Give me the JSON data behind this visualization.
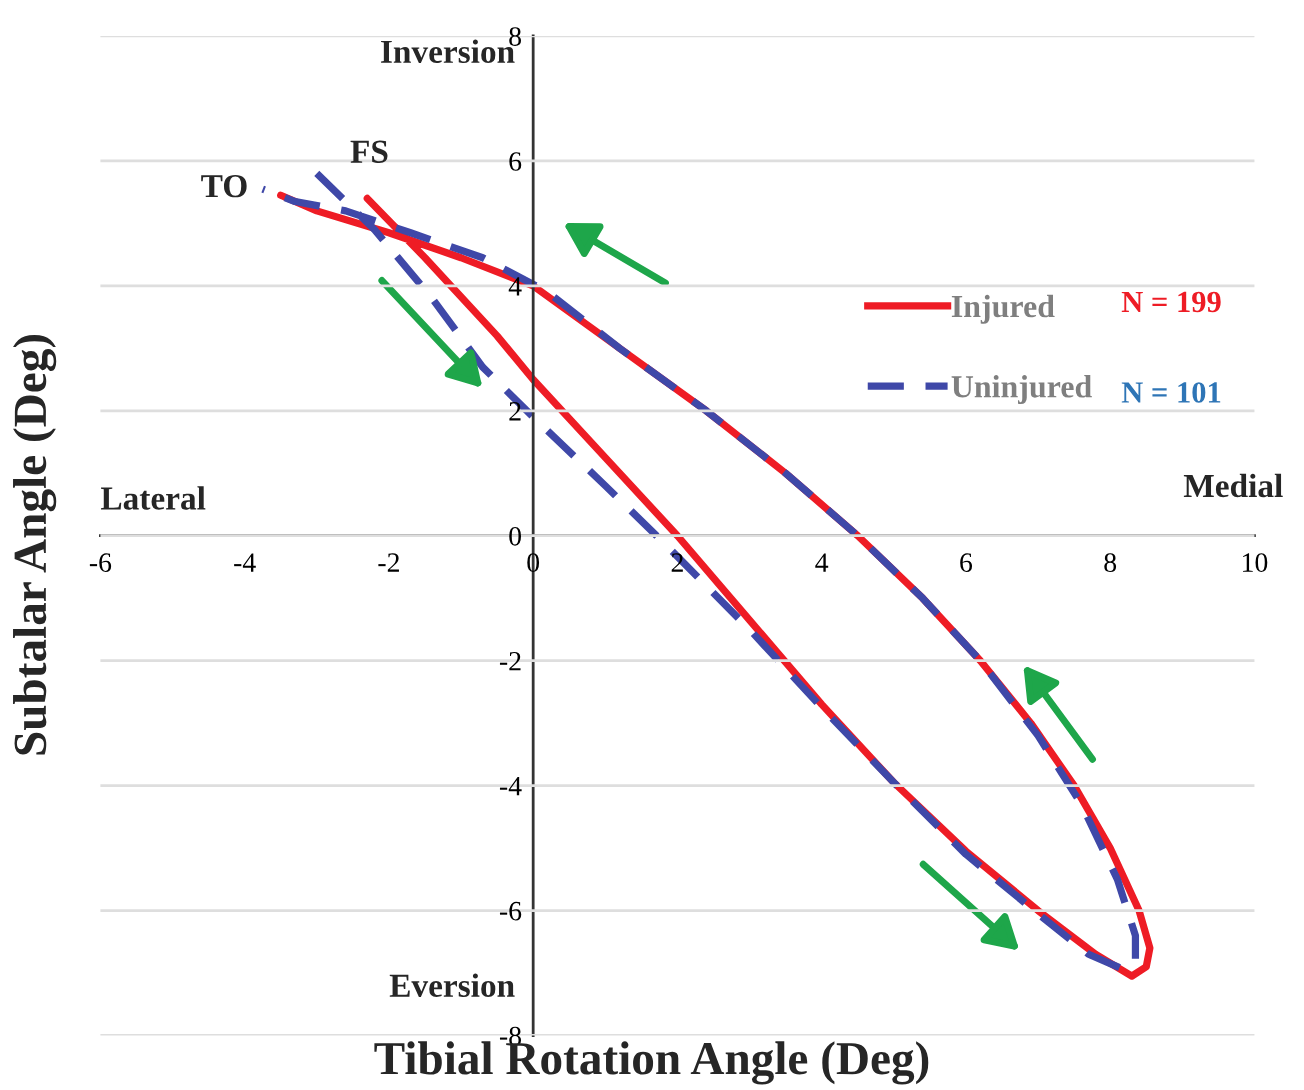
{
  "chart_data": {
    "type": "line",
    "xlabel": "Tibial Rotation Angle (Deg)",
    "ylabel": "Subtalar Angle (Deg)",
    "xlim": [
      -6,
      10
    ],
    "xticks": [
      -6,
      -4,
      -2,
      0,
      2,
      4,
      6,
      8,
      10
    ],
    "ylim": [
      -8,
      8
    ],
    "yticks": [
      -8,
      -6,
      -4,
      -2,
      0,
      2,
      4,
      6,
      8
    ],
    "grid": "y",
    "legend": "top right",
    "marker": "none",
    "series": [
      {
        "name": "Injured",
        "color": "#ee1c25",
        "line_style": "solid",
        "x": [
          -2.3,
          -1.5,
          -0.5,
          0,
          1,
          2,
          3,
          4,
          5,
          6,
          7,
          7.8,
          8.3,
          8.5,
          8.55,
          8.4,
          8.0,
          7.5,
          6.9,
          6.2,
          5.4,
          4.5,
          3.5,
          2.4,
          1.2,
          0,
          -1,
          -2,
          -3,
          -3.5
        ],
        "values": [
          5.4,
          4.45,
          3.2,
          2.5,
          1.25,
          0,
          -1.35,
          -2.7,
          -3.95,
          -5.05,
          -6.0,
          -6.7,
          -7.05,
          -6.9,
          -6.6,
          -6.0,
          -5.0,
          -4.0,
          -3.0,
          -2.0,
          -1.0,
          0,
          1.0,
          2.0,
          3.0,
          4.0,
          4.45,
          4.85,
          5.2,
          5.45
        ]
      },
      {
        "name": "Uninjured",
        "color": "#3f48a8",
        "line_style": "dashed",
        "x": [
          -3.0,
          -2.2,
          -1.4,
          -0.7,
          0,
          1,
          1.8,
          3,
          4,
          5,
          6,
          7,
          7.7,
          8.2,
          8.35,
          8.35,
          8.1,
          7.6,
          7.0,
          6.2,
          5.4,
          4.5,
          3.5,
          2.4,
          1.2,
          0.2,
          -0.7,
          -1.7,
          -2.6,
          -3.3,
          -3.75
        ],
        "values": [
          5.8,
          4.9,
          3.8,
          2.7,
          1.9,
          0.8,
          -0.1,
          -1.5,
          -2.75,
          -3.95,
          -5.1,
          -6.05,
          -6.7,
          -6.95,
          -6.8,
          -6.4,
          -5.5,
          -4.3,
          -3.2,
          -2.0,
          -1.0,
          0,
          1.0,
          2.0,
          3.0,
          3.9,
          4.45,
          4.85,
          5.2,
          5.35,
          5.55
        ]
      }
    ],
    "annotations": [
      "Inversion",
      "Eversion",
      "Lateral",
      "Medial",
      "TO",
      "FS",
      "N = 199",
      "N = 101"
    ]
  }
}
